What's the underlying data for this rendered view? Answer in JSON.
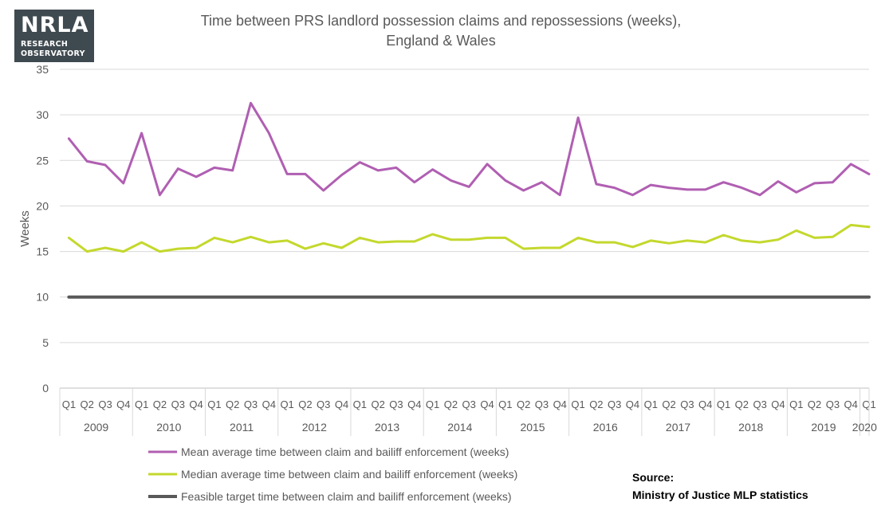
{
  "logo": {
    "main": "NRLA",
    "line1": "RESEARCH",
    "line2": "OBSERVATORY"
  },
  "source": {
    "label": "Source:",
    "text": "Ministry of Justice MLP statistics"
  },
  "colors": {
    "mean": "#b05fb2",
    "median": "#c4d82d",
    "target": "#595959",
    "grid": "#d9d9d9"
  },
  "chart_data": {
    "type": "line",
    "title_line1": "Time between PRS landlord possession claims and repossessions (weeks),",
    "title_line2": "England & Wales",
    "ylabel": "Weeks",
    "ylim": [
      0,
      35
    ],
    "yticks": [
      0,
      5,
      10,
      15,
      20,
      25,
      30,
      35
    ],
    "grid": true,
    "legend_placement": "bottom-left",
    "quarters": [
      "Q1",
      "Q2",
      "Q3",
      "Q4",
      "Q1",
      "Q2",
      "Q3",
      "Q4",
      "Q1",
      "Q2",
      "Q3",
      "Q4",
      "Q1",
      "Q2",
      "Q3",
      "Q4",
      "Q1",
      "Q2",
      "Q3",
      "Q4",
      "Q1",
      "Q2",
      "Q3",
      "Q4",
      "Q1",
      "Q2",
      "Q3",
      "Q4",
      "Q1",
      "Q2",
      "Q3",
      "Q4",
      "Q1",
      "Q2",
      "Q3",
      "Q4",
      "Q1",
      "Q2",
      "Q3",
      "Q4",
      "Q1",
      "Q2",
      "Q3",
      "Q4",
      "Q1"
    ],
    "years": [
      "2009",
      "2010",
      "2011",
      "2012",
      "2013",
      "2014",
      "2015",
      "2016",
      "2017",
      "2018",
      "2019",
      "2020"
    ],
    "series": [
      {
        "name": "Mean average time between claim and bailiff enforcement (weeks)",
        "values": [
          27.4,
          24.9,
          24.5,
          22.5,
          28.0,
          21.2,
          24.1,
          23.2,
          24.2,
          23.9,
          31.3,
          28.0,
          23.5,
          23.5,
          21.7,
          23.4,
          24.8,
          23.9,
          24.2,
          22.6,
          24.0,
          22.8,
          22.1,
          24.6,
          22.8,
          21.7,
          22.6,
          21.2,
          29.7,
          22.4,
          22.0,
          21.2,
          22.3,
          22.0,
          21.8,
          21.8,
          22.6,
          22.0,
          21.2,
          22.7,
          21.5,
          22.5,
          22.6,
          24.6,
          23.5
        ]
      },
      {
        "name": "Median average time between claim and bailiff enforcement (weeks)",
        "values": [
          16.5,
          15.0,
          15.4,
          15.0,
          16.0,
          15.0,
          15.3,
          15.4,
          16.5,
          16.0,
          16.6,
          16.0,
          16.2,
          15.3,
          15.9,
          15.4,
          16.5,
          16.0,
          16.1,
          16.1,
          16.9,
          16.3,
          16.3,
          16.5,
          16.5,
          15.3,
          15.4,
          15.4,
          16.5,
          16.0,
          16.0,
          15.5,
          16.2,
          15.9,
          16.2,
          16.0,
          16.8,
          16.2,
          16.0,
          16.3,
          17.3,
          16.5,
          16.6,
          17.9,
          17.7
        ]
      },
      {
        "name": "Feasible target time between claim and bailiff enforcement (weeks)",
        "values": [
          10,
          10,
          10,
          10,
          10,
          10,
          10,
          10,
          10,
          10,
          10,
          10,
          10,
          10,
          10,
          10,
          10,
          10,
          10,
          10,
          10,
          10,
          10,
          10,
          10,
          10,
          10,
          10,
          10,
          10,
          10,
          10,
          10,
          10,
          10,
          10,
          10,
          10,
          10,
          10,
          10,
          10,
          10,
          10,
          10
        ]
      }
    ]
  }
}
